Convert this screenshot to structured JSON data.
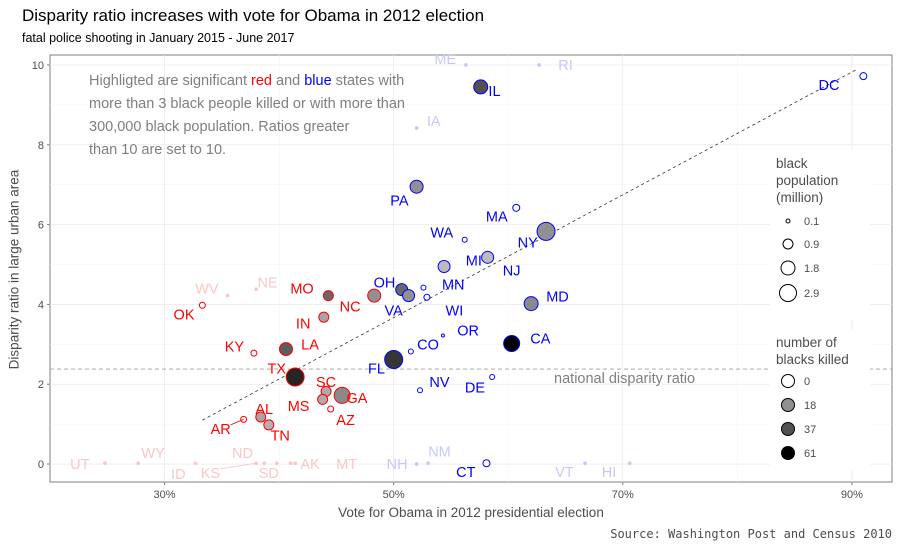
{
  "chart_data": {
    "type": "scatter",
    "title": "Disparity ratio increases with vote for Obama in 2012 election",
    "subtitle": "fatal police shooting in January 2015 - June 2017",
    "xlabel": "Vote for Obama in 2012 presidential election",
    "ylabel": "Disparity ratio in large urban area",
    "caption": "Source: Washington Post and Census 2010",
    "xlim": [
      0.2,
      0.935
    ],
    "ylim": [
      -0.45,
      10.25
    ],
    "xticks": [
      {
        "v": 0.3,
        "label": "30%"
      },
      {
        "v": 0.5,
        "label": "50%"
      },
      {
        "v": 0.7,
        "label": "70%"
      },
      {
        "v": 0.9,
        "label": "90%"
      }
    ],
    "yticks": [
      {
        "v": 0,
        "label": "0"
      },
      {
        "v": 2,
        "label": "2"
      },
      {
        "v": 4,
        "label": "4"
      },
      {
        "v": 6,
        "label": "6"
      },
      {
        "v": 8,
        "label": "8"
      },
      {
        "v": 10,
        "label": "10"
      }
    ],
    "grid": true,
    "note_lines": [
      [
        {
          "t": "Highligted are significant ",
          "c": "#7f7f7f"
        },
        {
          "t": "red",
          "c": "#ff0000"
        },
        {
          "t": " and ",
          "c": "#7f7f7f"
        },
        {
          "t": "blue",
          "c": "#0000ff"
        },
        {
          "t": " states with",
          "c": "#7f7f7f"
        }
      ],
      [
        {
          "t": "more than 3 black people killed or with more than",
          "c": "#7f7f7f"
        }
      ],
      [
        {
          "t": "300,000 black population. Ratios greater",
          "c": "#7f7f7f"
        }
      ],
      [
        {
          "t": "than 10 are set to 10.",
          "c": "#7f7f7f"
        }
      ]
    ],
    "national_line": {
      "y": 2.38,
      "label": "national disparity ratio"
    },
    "trend_line": {
      "x1": 0.333,
      "y1": 1.1,
      "x2": 0.905,
      "y2": 9.9
    },
    "colors": {
      "red": "#ff0000",
      "blue": "#0000ff",
      "faded_red": "#f8c8c8",
      "faded_blue": "#c8c8f8"
    },
    "legend": {
      "size_title": [
        "black",
        "population",
        "(million)"
      ],
      "size_items": [
        {
          "label": "0.1",
          "r": 2
        },
        {
          "label": "0.9",
          "r": 5
        },
        {
          "label": "1.8",
          "r": 7
        },
        {
          "label": "2.9",
          "r": 8.5
        }
      ],
      "fill_title": [
        "number of",
        "blacks killed"
      ],
      "fill_items": [
        {
          "label": "0",
          "k": 0
        },
        {
          "label": "18",
          "k": 18
        },
        {
          "label": "37",
          "k": 37
        },
        {
          "label": "61",
          "k": 61
        }
      ]
    },
    "points": [
      {
        "state": "DC",
        "x": 0.91,
        "y": 9.72,
        "r": 3.5,
        "k": 0,
        "c": "blue",
        "lx": 0.88,
        "ly": 9.5
      },
      {
        "state": "IL",
        "x": 0.576,
        "y": 9.45,
        "r": 7,
        "k": 37,
        "c": "blue",
        "lx": 0.588,
        "ly": 9.35
      },
      {
        "state": "ME",
        "x": 0.563,
        "y": 10.0,
        "r": 1.5,
        "k": 0,
        "c": "fblue",
        "lx": 0.545,
        "ly": 10.15
      },
      {
        "state": "RI",
        "x": 0.627,
        "y": 10.0,
        "r": 1.5,
        "k": 0,
        "c": "fblue",
        "lx": 0.65,
        "ly": 10.0
      },
      {
        "state": "IA",
        "x": 0.52,
        "y": 8.42,
        "r": 1.5,
        "k": 0,
        "c": "fblue",
        "lx": 0.535,
        "ly": 8.6
      },
      {
        "state": "PA",
        "x": 0.52,
        "y": 6.95,
        "r": 6.5,
        "k": 18,
        "c": "blue",
        "lx": 0.505,
        "ly": 6.6
      },
      {
        "state": "MA",
        "x": 0.607,
        "y": 6.42,
        "r": 3.5,
        "k": 0,
        "c": "blue",
        "lx": 0.59,
        "ly": 6.2
      },
      {
        "state": "NY",
        "x": 0.633,
        "y": 5.83,
        "r": 9,
        "k": 18,
        "c": "blue",
        "lx": 0.617,
        "ly": 5.55
      },
      {
        "state": "WA",
        "x": 0.562,
        "y": 5.62,
        "r": 2.5,
        "k": 0,
        "c": "blue",
        "lx": 0.542,
        "ly": 5.8
      },
      {
        "state": "MI",
        "x": 0.544,
        "y": 4.95,
        "r": 6,
        "k": 5,
        "c": "blue",
        "lx": 0.57,
        "ly": 5.1
      },
      {
        "state": "NJ",
        "x": 0.582,
        "y": 5.18,
        "r": 6,
        "k": 5,
        "c": "blue",
        "lx": 0.603,
        "ly": 4.85
      },
      {
        "state": "MN",
        "x": 0.526,
        "y": 4.42,
        "r": 2.5,
        "k": 0,
        "c": "blue",
        "lx": 0.552,
        "ly": 4.5
      },
      {
        "state": "OH",
        "x": 0.507,
        "y": 4.37,
        "r": 6,
        "k": 30,
        "c": "blue",
        "lx": 0.492,
        "ly": 4.55
      },
      {
        "state": "VA",
        "x": 0.513,
        "y": 4.22,
        "r": 6,
        "k": 18,
        "c": "blue",
        "lx": 0.5,
        "ly": 3.85
      },
      {
        "state": "WI",
        "x": 0.529,
        "y": 4.18,
        "r": 3,
        "k": 0,
        "c": "blue",
        "lx": 0.553,
        "ly": 3.85
      },
      {
        "state": "MD",
        "x": 0.62,
        "y": 4.02,
        "r": 7,
        "k": 20,
        "c": "blue",
        "lx": 0.643,
        "ly": 4.2
      },
      {
        "state": "OR",
        "x": 0.543,
        "y": 3.22,
        "r": 1.5,
        "k": 0,
        "c": "blue",
        "lx": 0.565,
        "ly": 3.35
      },
      {
        "state": "CO",
        "x": 0.515,
        "y": 2.82,
        "r": 2.5,
        "k": 0,
        "c": "blue",
        "lx": 0.53,
        "ly": 3.0
      },
      {
        "state": "CA",
        "x": 0.603,
        "y": 3.02,
        "r": 8,
        "k": 61,
        "c": "blue",
        "lx": 0.628,
        "ly": 3.15
      },
      {
        "state": "FL",
        "x": 0.5,
        "y": 2.62,
        "r": 9,
        "k": 45,
        "c": "blue",
        "lx": 0.485,
        "ly": 2.4
      },
      {
        "state": "NV",
        "x": 0.523,
        "y": 1.85,
        "r": 2.5,
        "k": 0,
        "c": "blue",
        "lx": 0.54,
        "ly": 2.05
      },
      {
        "state": "DE",
        "x": 0.586,
        "y": 2.18,
        "r": 2.5,
        "k": 0,
        "c": "blue",
        "lx": 0.571,
        "ly": 1.92
      },
      {
        "state": "NH",
        "x": 0.52,
        "y": 0.0,
        "r": 1.5,
        "k": 0,
        "c": "fblue",
        "lx": 0.503,
        "ly": 0.0
      },
      {
        "state": "NM",
        "x": 0.53,
        "y": 0.02,
        "r": 1.5,
        "k": 0,
        "c": "fblue",
        "lx": 0.54,
        "ly": 0.32
      },
      {
        "state": "CT",
        "x": 0.581,
        "y": 0.02,
        "r": 3.5,
        "k": 0,
        "c": "blue",
        "lx": 0.563,
        "ly": -0.2
      },
      {
        "state": "VT",
        "x": 0.667,
        "y": 0.02,
        "r": 1.5,
        "k": 0,
        "c": "fblue",
        "lx": 0.649,
        "ly": -0.2
      },
      {
        "state": "HI",
        "x": 0.706,
        "y": 0.02,
        "r": 1.5,
        "k": 0,
        "c": "fblue",
        "lx": 0.688,
        "ly": -0.2
      },
      {
        "state": "MO",
        "x": 0.443,
        "y": 4.22,
        "r": 5,
        "k": 30,
        "c": "red",
        "lx": 0.42,
        "ly": 4.4
      },
      {
        "state": "NC",
        "x": 0.483,
        "y": 4.22,
        "r": 6.5,
        "k": 18,
        "c": "red",
        "lx": 0.462,
        "ly": 3.95
      },
      {
        "state": "IN",
        "x": 0.439,
        "y": 3.68,
        "r": 5,
        "k": 12,
        "c": "red",
        "lx": 0.421,
        "ly": 3.52
      },
      {
        "state": "OK",
        "x": 0.333,
        "y": 3.98,
        "r": 3,
        "k": 0,
        "c": "red",
        "lx": 0.317,
        "ly": 3.75
      },
      {
        "state": "KY",
        "x": 0.378,
        "y": 2.78,
        "r": 3,
        "k": 0,
        "c": "red",
        "lx": 0.361,
        "ly": 2.95
      },
      {
        "state": "LA",
        "x": 0.406,
        "y": 2.88,
        "r": 6.5,
        "k": 33,
        "c": "red",
        "lx": 0.427,
        "ly": 3.0
      },
      {
        "state": "TX",
        "x": 0.414,
        "y": 2.18,
        "r": 9,
        "k": 50,
        "c": "red",
        "lx": 0.398,
        "ly": 2.4
      },
      {
        "state": "SC",
        "x": 0.441,
        "y": 1.82,
        "r": 5,
        "k": 10,
        "c": "red",
        "lx": 0.441,
        "ly": 2.05
      },
      {
        "state": "GA",
        "x": 0.455,
        "y": 1.72,
        "r": 8,
        "k": 20,
        "c": "red",
        "lx": 0.468,
        "ly": 1.65
      },
      {
        "state": "MS",
        "x": 0.438,
        "y": 1.62,
        "r": 5,
        "k": 10,
        "c": "red",
        "lx": 0.417,
        "ly": 1.45
      },
      {
        "state": "AZ",
        "x": 0.445,
        "y": 1.38,
        "r": 3,
        "k": 0,
        "c": "red",
        "lx": 0.458,
        "ly": 1.1
      },
      {
        "state": "AL",
        "x": 0.384,
        "y": 1.18,
        "r": 5,
        "k": 12,
        "c": "red",
        "lx": 0.387,
        "ly": 1.38
      },
      {
        "state": "AR",
        "x": 0.369,
        "y": 1.12,
        "r": 3,
        "k": 0,
        "c": "red",
        "lx": 0.349,
        "ly": 0.88
      },
      {
        "state": "TN",
        "x": 0.391,
        "y": 0.98,
        "r": 5,
        "k": 8,
        "c": "red",
        "lx": 0.401,
        "ly": 0.72
      },
      {
        "state": "WV",
        "x": 0.355,
        "y": 4.22,
        "r": 1.5,
        "k": 0,
        "c": "fred",
        "lx": 0.337,
        "ly": 4.4
      },
      {
        "state": "NE",
        "x": 0.38,
        "y": 4.38,
        "r": 1.5,
        "k": 0,
        "c": "fred",
        "lx": 0.39,
        "ly": 4.55
      },
      {
        "state": "WY",
        "x": 0.277,
        "y": 0.02,
        "r": 1.5,
        "k": 0,
        "c": "fred",
        "lx": 0.29,
        "ly": 0.28
      },
      {
        "state": "UT",
        "x": 0.248,
        "y": 0.02,
        "r": 1.5,
        "k": 0,
        "c": "fred",
        "lx": 0.226,
        "ly": 0.0
      },
      {
        "state": "ND",
        "x": 0.387,
        "y": 0.02,
        "r": 1.5,
        "k": 0,
        "c": "fred",
        "lx": 0.368,
        "ly": 0.28
      },
      {
        "state": "ID",
        "x": 0.327,
        "y": 0.02,
        "r": 1.5,
        "k": 0,
        "c": "fred",
        "lx": 0.312,
        "ly": -0.25
      },
      {
        "state": "KS",
        "x": 0.38,
        "y": 0.02,
        "r": 1.5,
        "k": 0,
        "c": "fred",
        "lx": 0.34,
        "ly": -0.22
      },
      {
        "state": "SD",
        "x": 0.398,
        "y": 0.02,
        "r": 1.5,
        "k": 0,
        "c": "fred",
        "lx": 0.391,
        "ly": -0.22
      },
      {
        "state": "AK",
        "x": 0.41,
        "y": 0.02,
        "r": 1.5,
        "k": 0,
        "c": "fred",
        "lx": 0.427,
        "ly": 0.0
      },
      {
        "state": "MT",
        "x": 0.414,
        "y": 0.02,
        "r": 1.5,
        "k": 0,
        "c": "fred",
        "lx": 0.459,
        "ly": 0.0
      }
    ]
  }
}
